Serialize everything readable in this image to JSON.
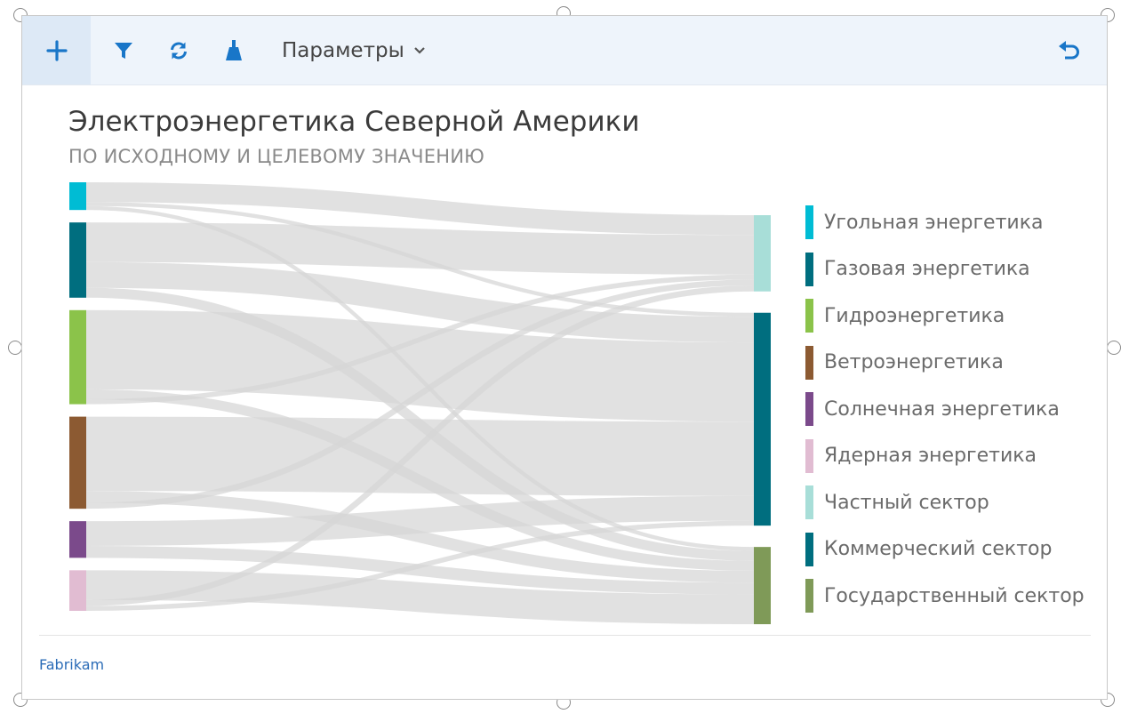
{
  "toolbar": {
    "params_label": "Параметры",
    "icons": [
      "plus-icon",
      "filter-icon",
      "refresh-icon",
      "broom-icon",
      "undo-icon"
    ],
    "accent": "#1976c8"
  },
  "chart": {
    "title": "Электроэнергетика Северной Америки",
    "subtitle": "ПО ИСХОДНОМУ И ЦЕЛЕВОМУ ЗНАЧЕНИЮ"
  },
  "chart_data": {
    "type": "sankey",
    "title": "Электроэнергетика Северной Америки",
    "subtitle": "ПО ИСХОДНОМУ И ЦЕЛЕВОМУ ЗНАЧЕНИЮ",
    "sources": [
      {
        "name": "Угольная энергетика",
        "color": "#00bcd4"
      },
      {
        "name": "Газовая энергетика",
        "color": "#006e7f"
      },
      {
        "name": "Гидроэнергетика",
        "color": "#8bc34a"
      },
      {
        "name": "Ветроэнергетика",
        "color": "#8c5a32"
      },
      {
        "name": "Солнечная энергетика",
        "color": "#7b4a8b"
      },
      {
        "name": "Ядерная энергетика",
        "color": "#e1bcd2"
      }
    ],
    "targets": [
      {
        "name": "Частный сектор",
        "color": "#a8ded8"
      },
      {
        "name": "Коммерческий сектор",
        "color": "#006e7f"
      },
      {
        "name": "Государственный сектор",
        "color": "#7f9a58"
      }
    ],
    "links": [
      {
        "source": "Угольная энергетика",
        "target": "Частный сектор",
        "value": 2
      },
      {
        "source": "Угольная энергетика",
        "target": "Коммерческий сектор",
        "value": 0.4
      },
      {
        "source": "Угольная энергетика",
        "target": "Государственный сектор",
        "value": 0.4
      },
      {
        "source": "Газовая энергетика",
        "target": "Частный сектор",
        "value": 4
      },
      {
        "source": "Газовая энергетика",
        "target": "Коммерческий сектор",
        "value": 2.6
      },
      {
        "source": "Газовая энергетика",
        "target": "Государственный сектор",
        "value": 1
      },
      {
        "source": "Гидроэнергетика",
        "target": "Коммерческий сектор",
        "value": 8
      },
      {
        "source": "Гидроэнергетика",
        "target": "Государственный сектор",
        "value": 1
      },
      {
        "source": "Гидроэнергетика",
        "target": "Частный сектор",
        "value": 0.5
      },
      {
        "source": "Ветроэнергетика",
        "target": "Коммерческий сектор",
        "value": 7.5
      },
      {
        "source": "Ветроэнергетика",
        "target": "Государственный сектор",
        "value": 1.2
      },
      {
        "source": "Ветроэнергетика",
        "target": "Частный сектор",
        "value": 0.6
      },
      {
        "source": "Солнечная энергетика",
        "target": "Коммерческий сектор",
        "value": 2.5
      },
      {
        "source": "Солнечная энергетика",
        "target": "Государственный сектор",
        "value": 1.2
      },
      {
        "source": "Ядерная энергетика",
        "target": "Государственный сектор",
        "value": 3
      },
      {
        "source": "Ядерная энергетика",
        "target": "Частный сектор",
        "value": 0.6
      },
      {
        "source": "Ядерная энергетика",
        "target": "Коммерческий сектор",
        "value": 0.5
      }
    ],
    "link_color": "#d6d6d6",
    "legend_position": "right"
  },
  "footer": {
    "brand": "Fabrikam"
  }
}
